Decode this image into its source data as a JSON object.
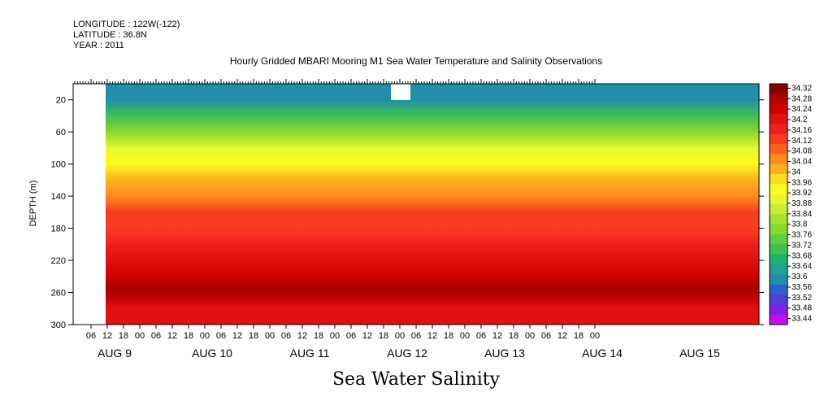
{
  "header": {
    "longitude": "LONGITUDE : 122W(-122)",
    "latitude": "LATITUDE : 36.8N",
    "year": "YEAR : 2011"
  },
  "chart_data": {
    "type": "heatmap",
    "title": "Hourly Gridded MBARI Mooring M1 Sea Water Temperature and Salinity Observations",
    "bottom_title": "Sea Water Salinity",
    "ylabel": "DEPTH (m)",
    "yticks": [
      "20",
      "60",
      "100",
      "140",
      "180",
      "220",
      "260",
      "300"
    ],
    "ylim": [
      300,
      0
    ],
    "xticks": [
      "06",
      "12",
      "18",
      "00",
      "06",
      "12",
      "18",
      "00",
      "06",
      "12",
      "18",
      "00",
      "06",
      "12",
      "18",
      "00",
      "06",
      "12",
      "18",
      "00",
      "06",
      "12",
      "18",
      "00",
      "06",
      "12",
      "18",
      "00",
      "06",
      "12",
      "18",
      "00"
    ],
    "dates": [
      "AUG  9",
      "AUG 10",
      "AUG 11",
      "AUG 12",
      "AUG 13",
      "AUG 14",
      "AUG 15"
    ],
    "colorbar": {
      "labels": [
        "34.32",
        "34.28",
        "34.24",
        "34.2",
        "34.16",
        "34.12",
        "34.08",
        "34.04",
        "34",
        "33.96",
        "33.92",
        "33.88",
        "33.84",
        "33.8",
        "33.76",
        "33.72",
        "33.68",
        "33.64",
        "33.6",
        "33.56",
        "33.52",
        "33.48",
        "33.44"
      ],
      "colors": [
        "#880000",
        "#b00000",
        "#d00000",
        "#e01010",
        "#f02020",
        "#f83c20",
        "#fc6020",
        "#fc8c20",
        "#fcb020",
        "#fcdc20",
        "#fcfc20",
        "#e8f830",
        "#c8ec30",
        "#a8e030",
        "#88d830",
        "#60cc40",
        "#40c050",
        "#20b070",
        "#20a090",
        "#2090a8",
        "#3060c8",
        "#5040d8",
        "#8020e8",
        "#c010f0"
      ]
    },
    "profile": [
      {
        "depth": 10,
        "value": 33.6
      },
      {
        "depth": 20,
        "value": 33.62
      },
      {
        "depth": 40,
        "value": 33.7
      },
      {
        "depth": 60,
        "value": 33.8
      },
      {
        "depth": 80,
        "value": 33.88
      },
      {
        "depth": 100,
        "value": 33.94
      },
      {
        "depth": 120,
        "value": 34.0
      },
      {
        "depth": 140,
        "value": 34.06
      },
      {
        "depth": 160,
        "value": 34.1
      },
      {
        "depth": 180,
        "value": 34.12
      },
      {
        "depth": 200,
        "value": 34.16
      },
      {
        "depth": 220,
        "value": 34.2
      },
      {
        "depth": 240,
        "value": 34.24
      },
      {
        "depth": 250,
        "value": 34.27
      },
      {
        "depth": 260,
        "value": 34.26
      },
      {
        "depth": 280,
        "value": 34.2
      },
      {
        "depth": 300,
        "value": 34.2
      }
    ],
    "data_gap_start_hours": 0,
    "data_gap_end_hours": 4
  }
}
